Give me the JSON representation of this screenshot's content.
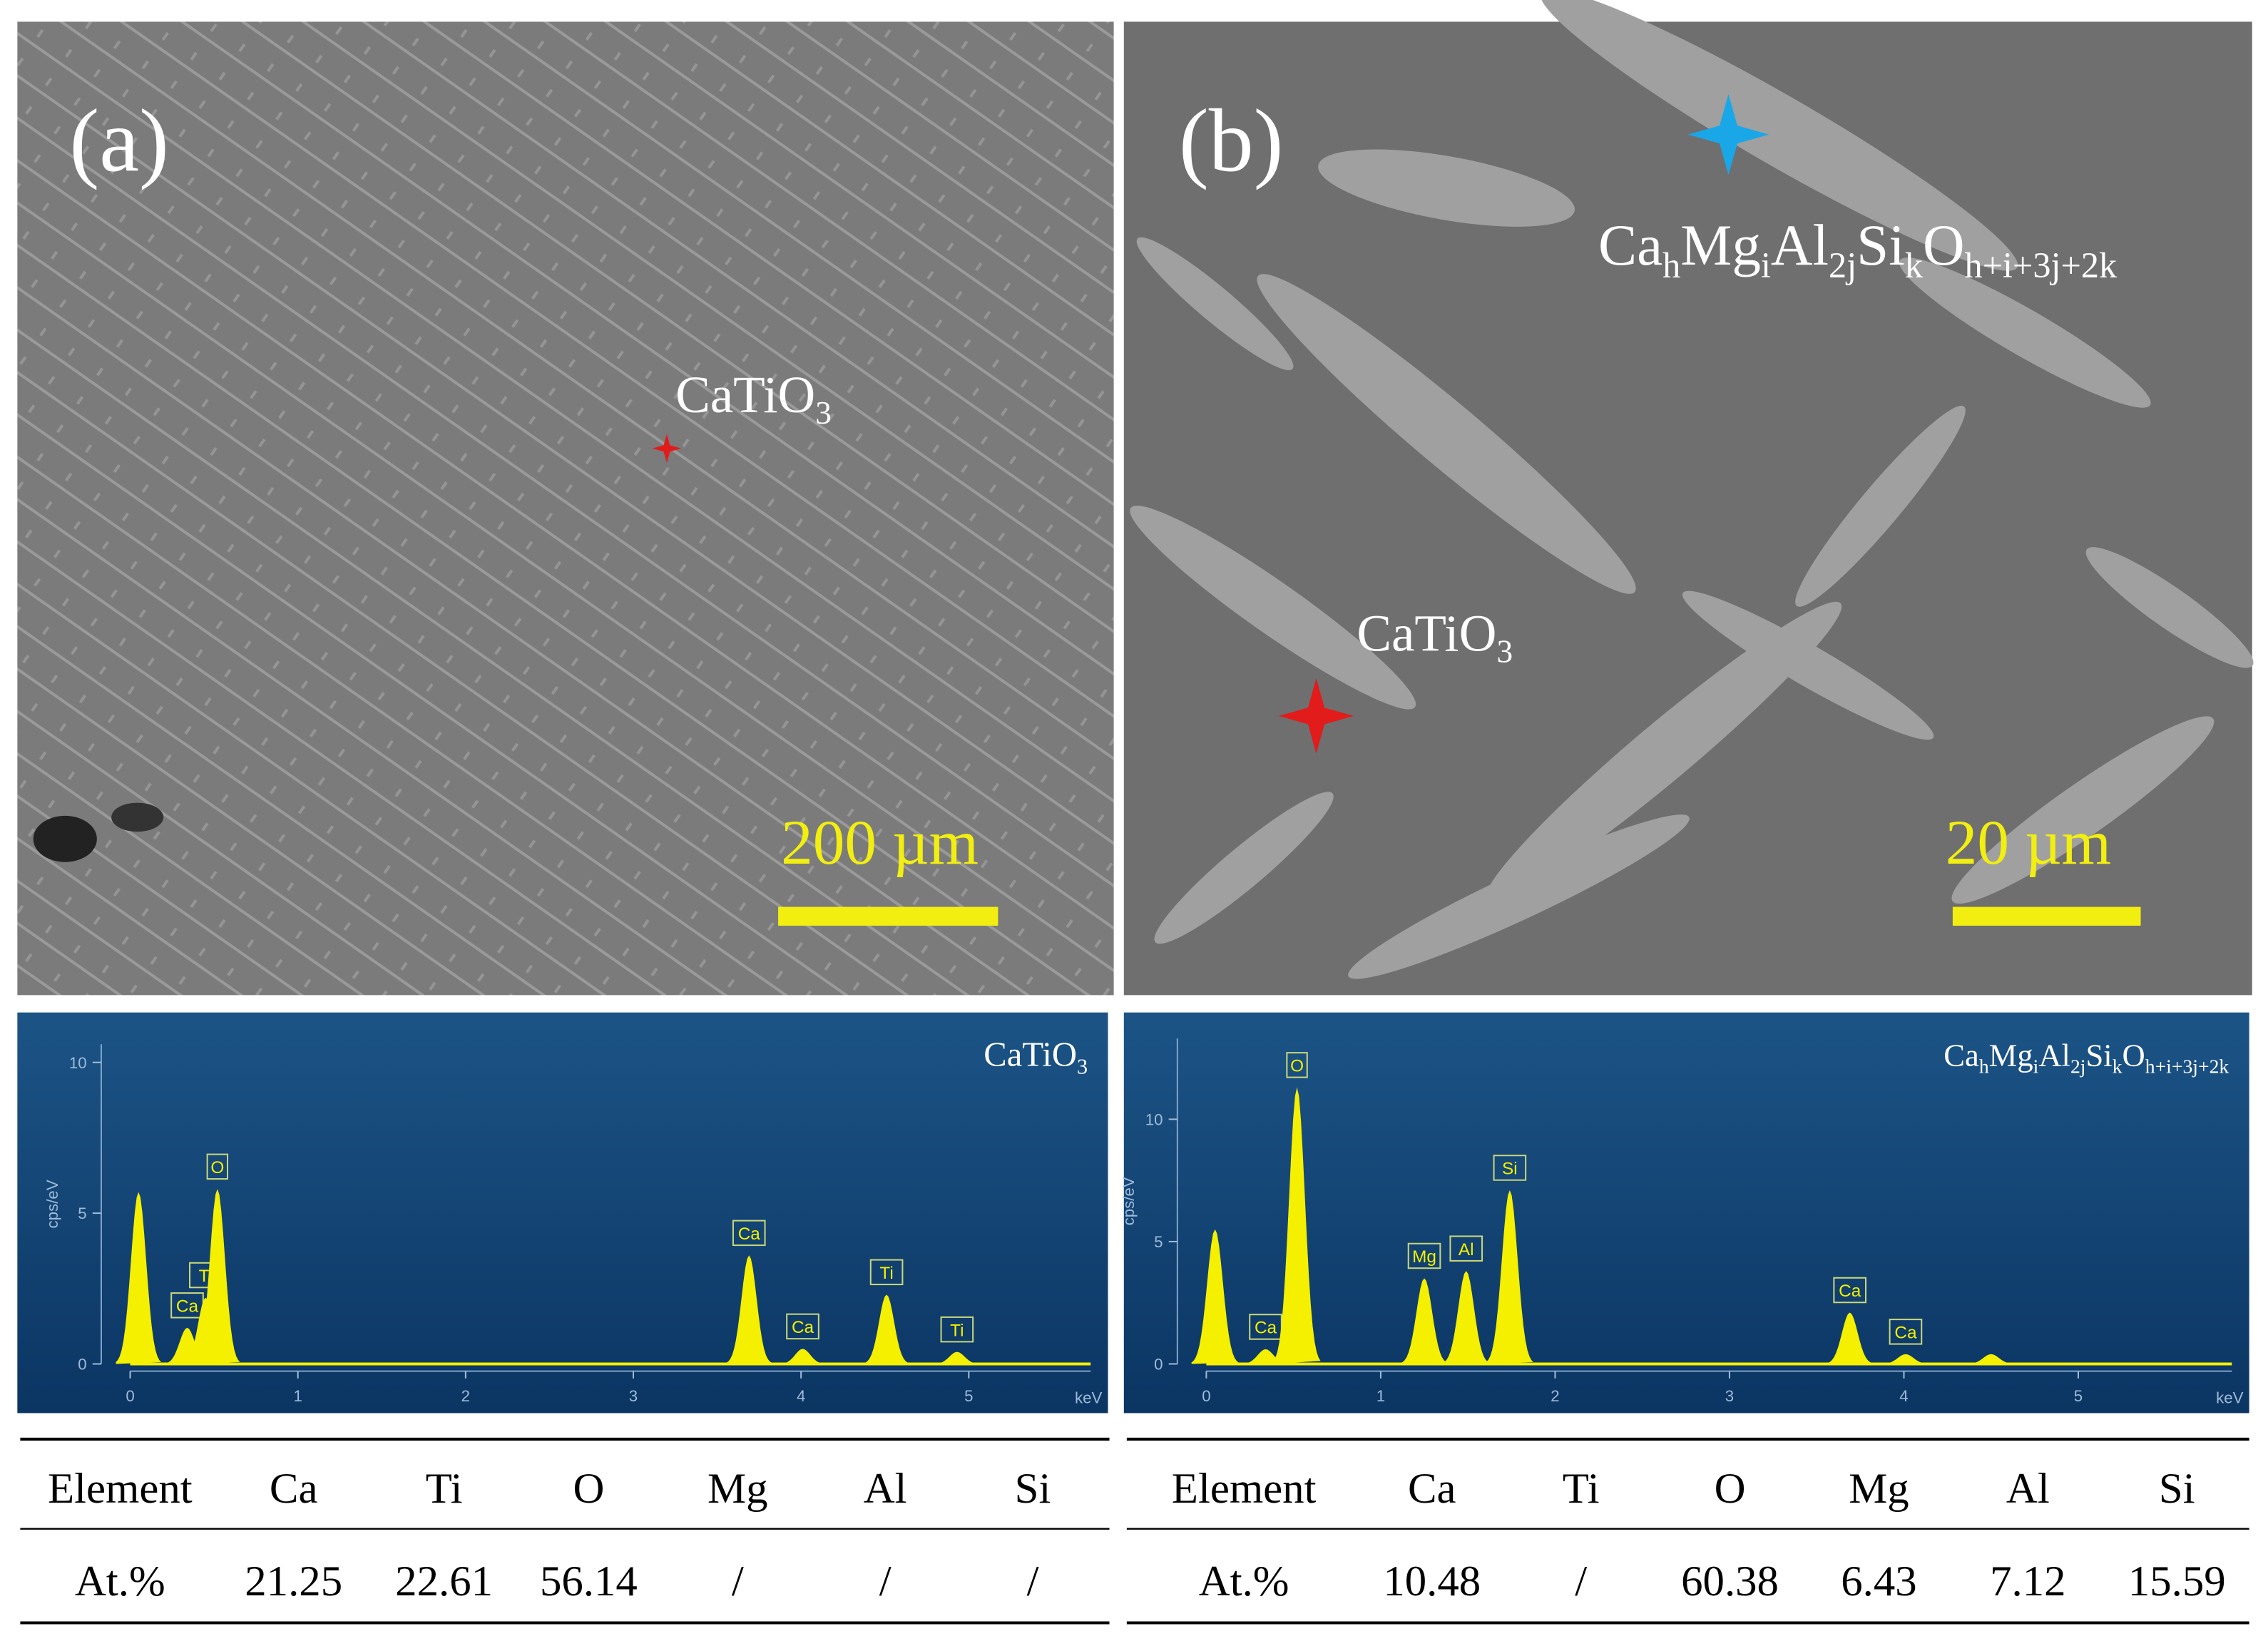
{
  "panels": [
    {
      "label": "(a)",
      "phases": [
        {
          "parts": [
            "CaTiO",
            "3"
          ]
        }
      ],
      "scale_bar": "200 µm"
    },
    {
      "label": "(b)",
      "phases": [
        {
          "parts": [
            "Ca",
            "h",
            "Mg",
            "i",
            "Al",
            "2j",
            "Si",
            "k",
            "O",
            "h+i+3j+2k"
          ]
        },
        {
          "parts": [
            "CaTiO",
            "3"
          ]
        }
      ],
      "scale_bar": "20 µm"
    }
  ],
  "spectra": [
    {
      "type": "spectrum",
      "ylabel": "cps/eV",
      "xlabel": "keV",
      "legend": {
        "parts": [
          "CaTiO",
          "3"
        ]
      },
      "xlim": [
        0,
        5.83
      ],
      "ylim": [
        0,
        10.6
      ],
      "xticks": [
        0,
        1,
        2,
        3,
        4,
        5
      ],
      "yticks": [
        0,
        5,
        10
      ],
      "peaks": [
        {
          "label": null,
          "x": 0.05,
          "y": 5.7
        },
        {
          "label": "Ca",
          "x": 0.34,
          "y": 1.2
        },
        {
          "label": "Ti",
          "x": 0.45,
          "y": 2.2
        },
        {
          "label": "O",
          "x": 0.52,
          "y": 5.8
        },
        {
          "label": "Ca",
          "x": 3.69,
          "y": 3.6
        },
        {
          "label": "Ca",
          "x": 4.01,
          "y": 0.5
        },
        {
          "label": "Ti",
          "x": 4.51,
          "y": 2.3
        },
        {
          "label": "Ti",
          "x": 4.93,
          "y": 0.4
        }
      ]
    },
    {
      "type": "spectrum",
      "ylabel": "cps/eV",
      "xlabel": "keV",
      "legend": {
        "parts": [
          "Ca",
          "h",
          "Mg",
          "i",
          "Al",
          "2j",
          "Si",
          "k",
          "O",
          "h+i+3j+2k"
        ]
      },
      "xlim": [
        0,
        5.98
      ],
      "ylim": [
        0,
        13.3
      ],
      "xticks": [
        0,
        1,
        2,
        3,
        4,
        5
      ],
      "yticks": [
        0,
        5,
        10
      ],
      "peaks": [
        {
          "label": null,
          "x": 0.05,
          "y": 5.5
        },
        {
          "label": "Ca",
          "x": 0.34,
          "y": 0.6
        },
        {
          "label": "O",
          "x": 0.52,
          "y": 11.3
        },
        {
          "label": "Mg",
          "x": 1.25,
          "y": 3.5
        },
        {
          "label": "Al",
          "x": 1.49,
          "y": 3.8
        },
        {
          "label": "Si",
          "x": 1.74,
          "y": 7.1
        },
        {
          "label": "Ca",
          "x": 3.69,
          "y": 2.1
        },
        {
          "label": "Ca",
          "x": 4.01,
          "y": 0.4
        },
        {
          "label": null,
          "x": 4.5,
          "y": 0.4
        }
      ]
    }
  ],
  "tables": [
    {
      "header": [
        "Element",
        "Ca",
        "Ti",
        "O",
        "Mg",
        "Al",
        "Si"
      ],
      "rows": [
        [
          "At.%",
          "21.25",
          "22.61",
          "56.14",
          "/",
          "/",
          "/"
        ]
      ]
    },
    {
      "header": [
        "Element",
        "Ca",
        "Ti",
        "O",
        "Mg",
        "Al",
        "Si"
      ],
      "rows": [
        [
          "At.%",
          "10.48",
          "/",
          "60.38",
          "6.43",
          "7.12",
          "15.59"
        ]
      ]
    }
  ]
}
